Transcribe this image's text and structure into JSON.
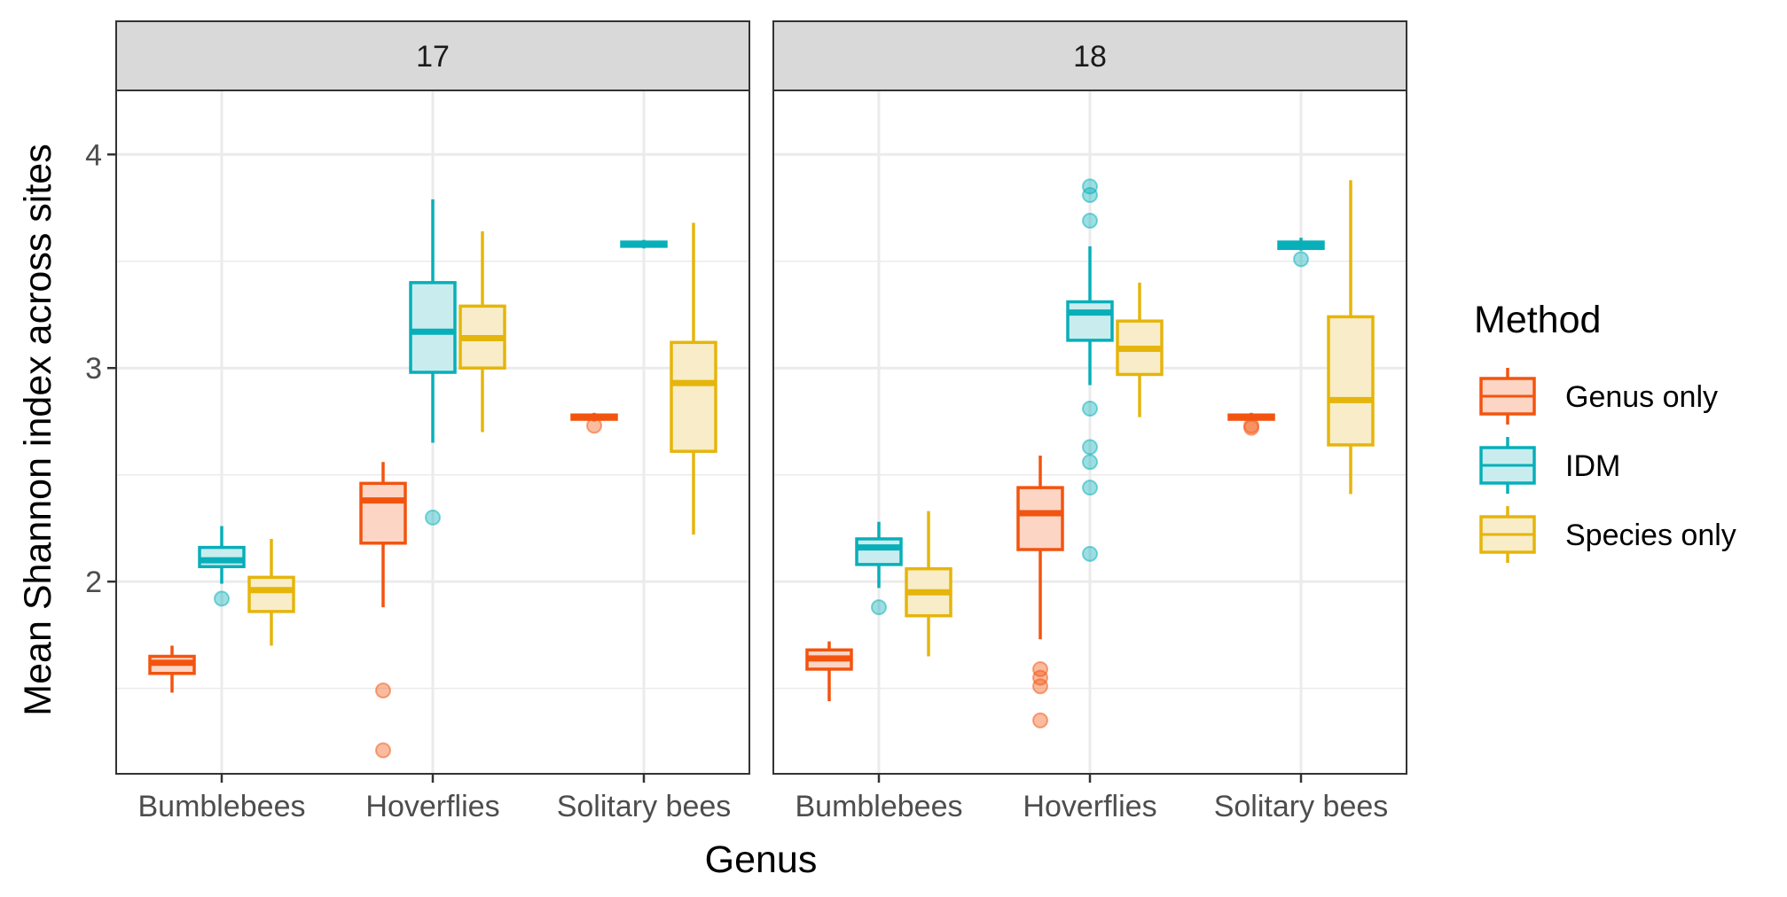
{
  "chart_data": {
    "type": "box",
    "xlabel": "Genus",
    "ylabel": "Mean Shannon index across sites",
    "ylim": [
      1.1,
      4.3
    ],
    "yticks": [
      2,
      3,
      4
    ],
    "categories": [
      "Bumblebees",
      "Hoverflies",
      "Solitary bees"
    ],
    "legend": {
      "title": "Method",
      "position": "right",
      "entries": [
        "Genus only",
        "IDM",
        "Species only"
      ]
    },
    "colors": {
      "Genus only": "#F2540F",
      "IDM": "#08AFB9",
      "Species only": "#E5B50C"
    },
    "fills": {
      "Genus only": "#FCD5C5",
      "IDM": "#C9EDEF",
      "Species only": "#F8EDC8"
    },
    "panels": [
      {
        "label": "17",
        "boxes": [
          {
            "category": "Bumblebees",
            "method": "Genus only",
            "whisker_low": 1.48,
            "q1": 1.57,
            "median": 1.62,
            "q3": 1.65,
            "whisker_high": 1.7,
            "outliers": []
          },
          {
            "category": "Bumblebees",
            "method": "IDM",
            "whisker_low": 1.99,
            "q1": 2.07,
            "median": 2.1,
            "q3": 2.16,
            "whisker_high": 2.26,
            "outliers": [
              1.92
            ]
          },
          {
            "category": "Bumblebees",
            "method": "Species only",
            "whisker_low": 1.7,
            "q1": 1.86,
            "median": 1.96,
            "q3": 2.02,
            "whisker_high": 2.2,
            "outliers": []
          },
          {
            "category": "Hoverflies",
            "method": "Genus only",
            "whisker_low": 1.88,
            "q1": 2.18,
            "median": 2.38,
            "q3": 2.46,
            "whisker_high": 2.56,
            "outliers": [
              1.49,
              1.21
            ]
          },
          {
            "category": "Hoverflies",
            "method": "IDM",
            "whisker_low": 2.65,
            "q1": 2.98,
            "median": 3.17,
            "q3": 3.4,
            "whisker_high": 3.79,
            "outliers": [
              2.3
            ]
          },
          {
            "category": "Hoverflies",
            "method": "Species only",
            "whisker_low": 2.7,
            "q1": 3.0,
            "median": 3.14,
            "q3": 3.29,
            "whisker_high": 3.64,
            "outliers": []
          },
          {
            "category": "Solitary bees",
            "method": "Genus only",
            "whisker_low": 2.75,
            "q1": 2.76,
            "median": 2.77,
            "q3": 2.78,
            "whisker_high": 2.79,
            "outliers": [
              2.73
            ]
          },
          {
            "category": "Solitary bees",
            "method": "IDM",
            "whisker_low": 3.56,
            "q1": 3.57,
            "median": 3.58,
            "q3": 3.59,
            "whisker_high": 3.6,
            "outliers": []
          },
          {
            "category": "Solitary bees",
            "method": "Species only",
            "whisker_low": 2.22,
            "q1": 2.61,
            "median": 2.93,
            "q3": 3.12,
            "whisker_high": 3.68,
            "outliers": []
          }
        ]
      },
      {
        "label": "18",
        "boxes": [
          {
            "category": "Bumblebees",
            "method": "Genus only",
            "whisker_low": 1.44,
            "q1": 1.59,
            "median": 1.64,
            "q3": 1.68,
            "whisker_high": 1.72,
            "outliers": []
          },
          {
            "category": "Bumblebees",
            "method": "IDM",
            "whisker_low": 1.97,
            "q1": 2.08,
            "median": 2.16,
            "q3": 2.2,
            "whisker_high": 2.28,
            "outliers": [
              1.88
            ]
          },
          {
            "category": "Bumblebees",
            "method": "Species only",
            "whisker_low": 1.65,
            "q1": 1.84,
            "median": 1.95,
            "q3": 2.06,
            "whisker_high": 2.33,
            "outliers": []
          },
          {
            "category": "Hoverflies",
            "method": "Genus only",
            "whisker_low": 1.73,
            "q1": 2.15,
            "median": 2.32,
            "q3": 2.44,
            "whisker_high": 2.59,
            "outliers": [
              1.59,
              1.55,
              1.51,
              1.35
            ]
          },
          {
            "category": "Hoverflies",
            "method": "IDM",
            "whisker_low": 2.92,
            "q1": 3.13,
            "median": 3.26,
            "q3": 3.31,
            "whisker_high": 3.57,
            "outliers": [
              3.85,
              3.81,
              3.69,
              2.81,
              2.63,
              2.56,
              2.44,
              2.13
            ]
          },
          {
            "category": "Hoverflies",
            "method": "Species only",
            "whisker_low": 2.77,
            "q1": 2.97,
            "median": 3.09,
            "q3": 3.22,
            "whisker_high": 3.4,
            "outliers": []
          },
          {
            "category": "Solitary bees",
            "method": "Genus only",
            "whisker_low": 2.76,
            "q1": 2.76,
            "median": 2.77,
            "q3": 2.78,
            "whisker_high": 2.79,
            "outliers": [
              2.73,
              2.72
            ]
          },
          {
            "category": "Solitary bees",
            "method": "IDM",
            "whisker_low": 3.55,
            "q1": 3.56,
            "median": 3.57,
            "q3": 3.59,
            "whisker_high": 3.61,
            "outliers": [
              3.51
            ]
          },
          {
            "category": "Solitary bees",
            "method": "Species only",
            "whisker_low": 2.41,
            "q1": 2.64,
            "median": 2.85,
            "q3": 3.24,
            "whisker_high": 3.88,
            "outliers": []
          }
        ]
      }
    ]
  }
}
